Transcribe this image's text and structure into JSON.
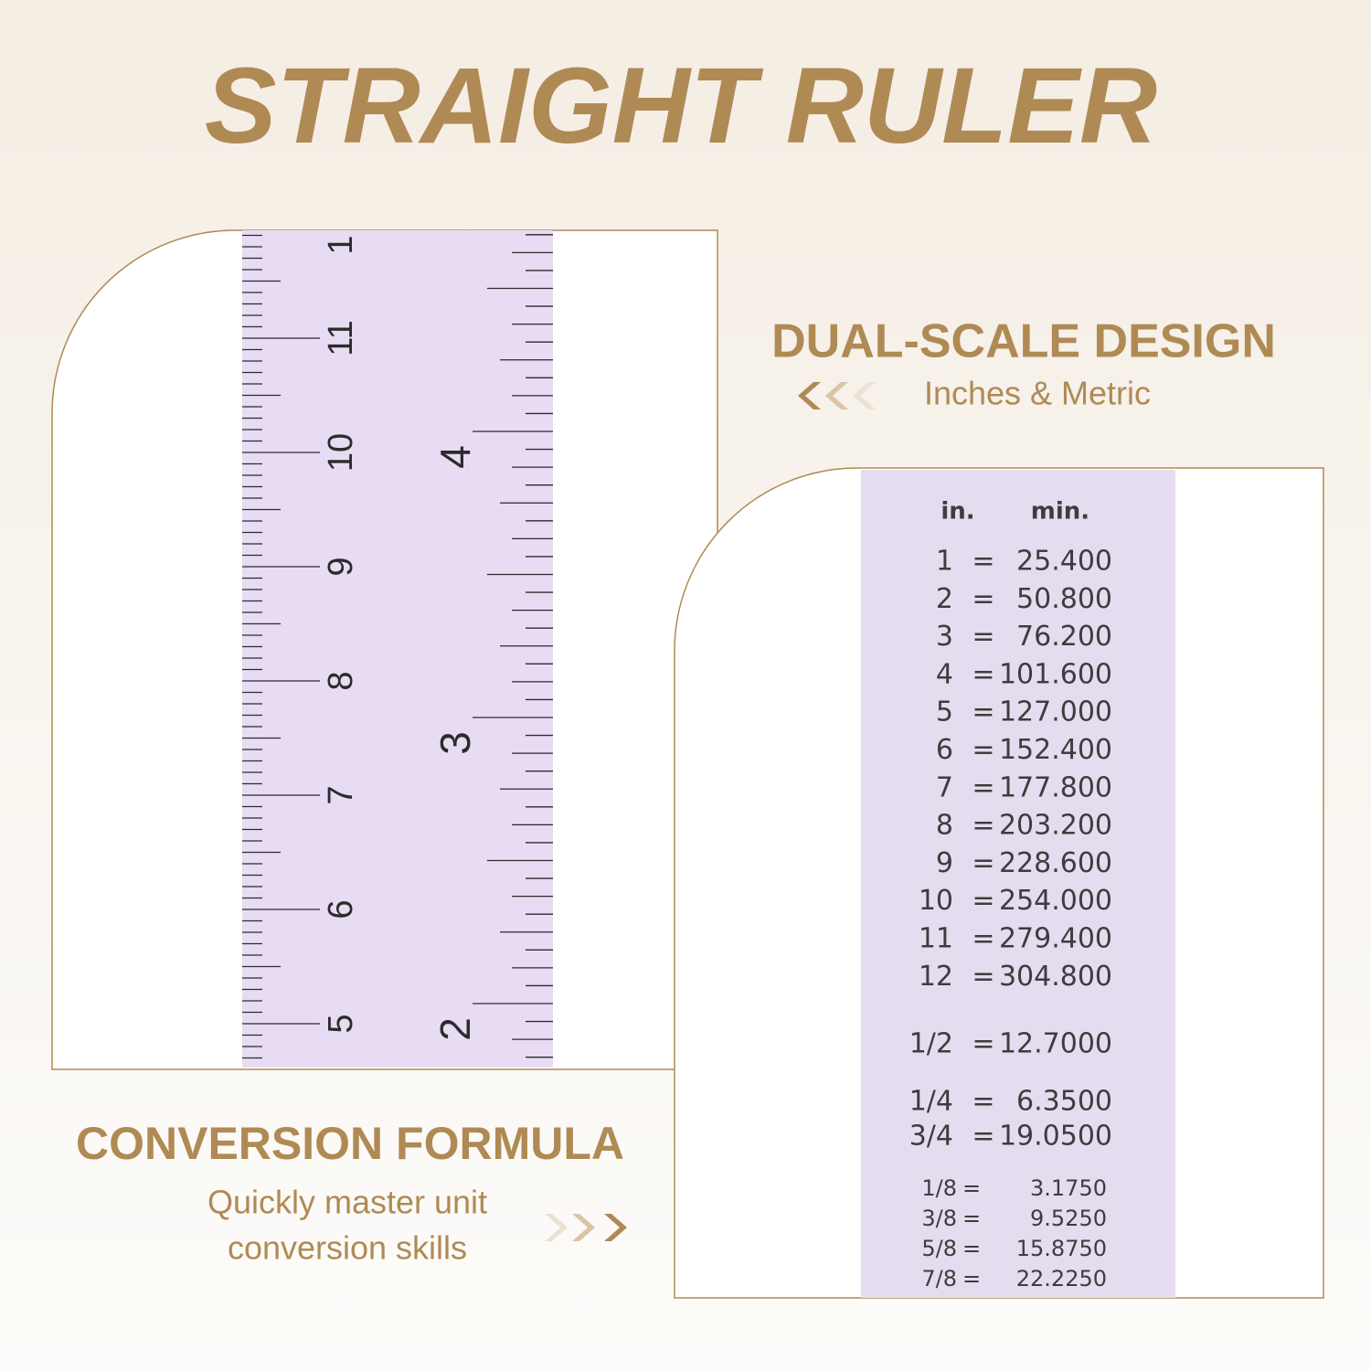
{
  "title": "STRAIGHT RULER",
  "features": [
    {
      "heading": "DUAL-SCALE DESIGN",
      "text": [
        "Inches & Metric"
      ]
    },
    {
      "heading": "CONVERSION FORMULA",
      "text": [
        "Quickly master unit",
        "conversion skills"
      ]
    }
  ],
  "ruler": {
    "cm_labels": [
      "1",
      "11",
      "10",
      "9",
      "8",
      "7",
      "6",
      "5"
    ],
    "inch_labels": [
      "4",
      "3",
      "2"
    ]
  },
  "conversion_table": {
    "header": [
      "in.",
      "min."
    ],
    "rows": [
      [
        "1",
        "=",
        "25.400"
      ],
      [
        "2",
        "=",
        "50.800"
      ],
      [
        "3",
        "=",
        "76.200"
      ],
      [
        "4",
        "=",
        "101.600"
      ],
      [
        "5",
        "=",
        "127.000"
      ],
      [
        "6",
        "=",
        "152.400"
      ],
      [
        "7",
        "=",
        "177.800"
      ],
      [
        "8",
        "=",
        "203.200"
      ],
      [
        "9",
        "=",
        "228.600"
      ],
      [
        "10",
        "=",
        "254.000"
      ],
      [
        "11",
        "=",
        "279.400"
      ],
      [
        "12",
        "=",
        "304.800"
      ],
      [
        "1/2",
        "=",
        "12.7000"
      ],
      [
        "1/4",
        "=",
        "6.3500"
      ],
      [
        "3/4",
        "=",
        "19.0500"
      ],
      [
        "1/8",
        "=",
        "3.1750"
      ],
      [
        "3/8",
        "=",
        "9.5250"
      ],
      [
        "5/8",
        "=",
        "15.8750"
      ],
      [
        "7/8",
        "=",
        "22.2250"
      ]
    ]
  }
}
